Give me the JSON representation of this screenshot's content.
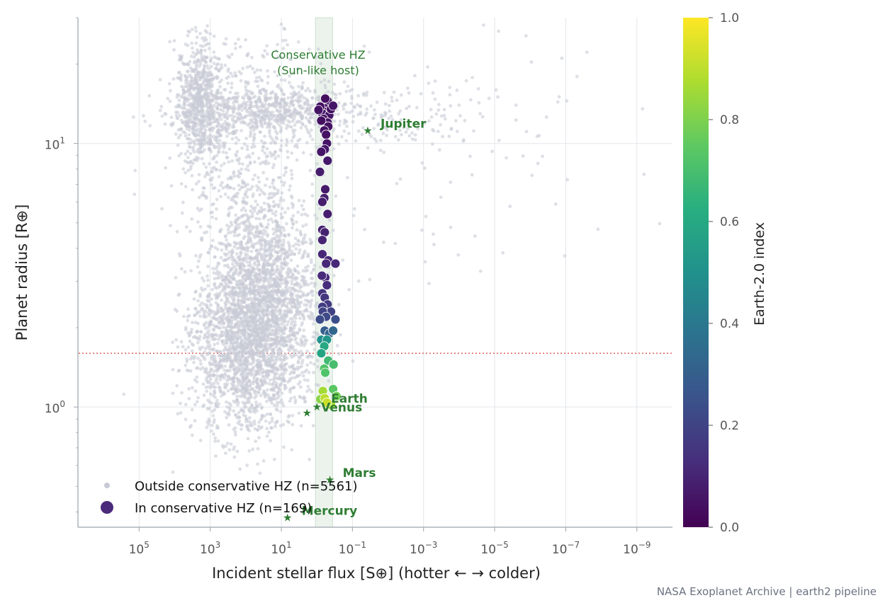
{
  "chart_data": {
    "type": "scatter",
    "xlabel": "Incident stellar flux  [S⊕]   (hotter ←   → colder)",
    "ylabel": "Planet radius  [R⊕]",
    "x_scale": "log",
    "x_reversed": true,
    "y_scale": "log",
    "xlim": [
      5000000.0,
      1e-10
    ],
    "ylim": [
      0.35,
      30
    ],
    "x_ticks": [
      {
        "value": 100000.0,
        "base": "10",
        "exp": "5"
      },
      {
        "value": 1000.0,
        "base": "10",
        "exp": "3"
      },
      {
        "value": 10.0,
        "base": "10",
        "exp": "1"
      },
      {
        "value": 0.1,
        "base": "10",
        "exp": "−1"
      },
      {
        "value": 0.001,
        "base": "10",
        "exp": "−3"
      },
      {
        "value": 1e-05,
        "base": "10",
        "exp": "−5"
      },
      {
        "value": 1e-07,
        "base": "10",
        "exp": "−7"
      },
      {
        "value": 1e-09,
        "base": "10",
        "exp": "−9"
      }
    ],
    "y_ticks": [
      {
        "value": 10,
        "base": "10",
        "exp": "1"
      },
      {
        "value": 1,
        "base": "10",
        "exp": "0"
      }
    ],
    "grid": true,
    "hz_band": {
      "flux_range": [
        1.1,
        0.36
      ],
      "label_line1": "Conservative HZ",
      "label_line2": "(Sun-like host)",
      "color": "#2e7d32"
    },
    "reference_line": {
      "radius": 1.6,
      "color": "#d9534f"
    },
    "colorbar": {
      "label": "Earth-2.0 index",
      "range": [
        0,
        1
      ],
      "ticks": [
        "0.0",
        "0.2",
        "0.4",
        "0.6",
        "0.8",
        "1.0"
      ],
      "colormap": "viridis"
    },
    "legend": {
      "placement": "lower-left",
      "entries": [
        {
          "label": "Outside conservative HZ (n=5561)",
          "color": "#c8cbd6"
        },
        {
          "label": "In conservative HZ (n=169)",
          "color": "#4b2a7b"
        }
      ]
    },
    "solar_system": [
      {
        "name": "Jupiter",
        "flux": 0.037,
        "radius": 11.2
      },
      {
        "name": "Earth",
        "flux": 1.0,
        "radius": 1.0
      },
      {
        "name": "Venus",
        "flux": 1.9,
        "radius": 0.95
      },
      {
        "name": "Mars",
        "flux": 0.43,
        "radius": 0.53
      },
      {
        "name": "Mercury",
        "flux": 6.7,
        "radius": 0.38
      }
    ],
    "background_clusters": [
      {
        "flux_center": 2000,
        "flux_spread": 0.35,
        "radius_center": 14,
        "radius_spread": 0.12,
        "count": 700
      },
      {
        "flux_center": 20,
        "flux_spread": 1.3,
        "radius_center": 13.2,
        "radius_spread": 0.05,
        "count": 650
      },
      {
        "flux_center": 0.01,
        "flux_spread": 1.6,
        "radius_center": 12.6,
        "radius_spread": 0.06,
        "count": 120
      },
      {
        "flux_center": 30,
        "flux_spread": 0.75,
        "radius_center": 2.6,
        "radius_spread": 0.16,
        "count": 1700
      },
      {
        "flux_center": 100,
        "flux_spread": 0.8,
        "radius_center": 1.5,
        "radius_spread": 0.14,
        "count": 1300
      },
      {
        "flux_center": 80,
        "flux_spread": 0.9,
        "radius_center": 6,
        "radius_spread": 0.35,
        "count": 900
      },
      {
        "flux_center": 0.0001,
        "flux_spread": 2.2,
        "radius_center": 12,
        "radius_spread": 0.3,
        "count": 90
      }
    ],
    "hz_points": [
      {
        "flux": 0.5,
        "radius": 14.5,
        "index": 0.05
      },
      {
        "flux": 0.6,
        "radius": 13.6,
        "index": 0.05
      },
      {
        "flux": 0.55,
        "radius": 13.2,
        "index": 0.05
      },
      {
        "flux": 0.7,
        "radius": 13.0,
        "index": 0.06
      },
      {
        "flux": 0.8,
        "radius": 13.8,
        "index": 0.04
      },
      {
        "flux": 0.45,
        "radius": 12.8,
        "index": 0.06
      },
      {
        "flux": 0.65,
        "radius": 12.4,
        "index": 0.05
      },
      {
        "flux": 0.5,
        "radius": 12.0,
        "index": 0.05
      },
      {
        "flux": 0.75,
        "radius": 12.2,
        "index": 0.04
      },
      {
        "flux": 0.4,
        "radius": 13.5,
        "index": 0.05
      },
      {
        "flux": 0.35,
        "radius": 13.9,
        "index": 0.06
      },
      {
        "flux": 0.9,
        "radius": 13.4,
        "index": 0.05
      },
      {
        "flux": 0.58,
        "radius": 14.8,
        "index": 0.04
      },
      {
        "flux": 0.48,
        "radius": 11.6,
        "index": 0.05
      },
      {
        "flux": 0.62,
        "radius": 11.2,
        "index": 0.05
      },
      {
        "flux": 0.55,
        "radius": 10.8,
        "index": 0.05
      },
      {
        "flux": 0.52,
        "radius": 10.0,
        "index": 0.06
      },
      {
        "flux": 0.6,
        "radius": 9.5,
        "index": 0.06
      },
      {
        "flux": 0.75,
        "radius": 9.3,
        "index": 0.06
      },
      {
        "flux": 0.5,
        "radius": 8.6,
        "index": 0.07
      },
      {
        "flux": 0.82,
        "radius": 7.8,
        "index": 0.08
      },
      {
        "flux": 0.58,
        "radius": 6.7,
        "index": 0.07
      },
      {
        "flux": 0.62,
        "radius": 6.2,
        "index": 0.08
      },
      {
        "flux": 0.7,
        "radius": 6.0,
        "index": 0.08
      },
      {
        "flux": 0.5,
        "radius": 5.4,
        "index": 0.08
      },
      {
        "flux": 0.7,
        "radius": 4.7,
        "index": 0.09
      },
      {
        "flux": 0.6,
        "radius": 4.6,
        "index": 0.09
      },
      {
        "flux": 0.7,
        "radius": 4.3,
        "index": 0.1
      },
      {
        "flux": 0.7,
        "radius": 3.8,
        "index": 0.11
      },
      {
        "flux": 0.48,
        "radius": 3.6,
        "index": 0.11
      },
      {
        "flux": 0.55,
        "radius": 3.5,
        "index": 0.11
      },
      {
        "flux": 0.3,
        "radius": 3.5,
        "index": 0.11
      },
      {
        "flux": 0.58,
        "radius": 3.1,
        "index": 0.12
      },
      {
        "flux": 0.72,
        "radius": 3.15,
        "index": 0.12
      },
      {
        "flux": 0.52,
        "radius": 2.9,
        "index": 0.13
      },
      {
        "flux": 0.7,
        "radius": 2.7,
        "index": 0.15
      },
      {
        "flux": 0.6,
        "radius": 2.6,
        "index": 0.16
      },
      {
        "flux": 0.5,
        "radius": 2.45,
        "index": 0.17
      },
      {
        "flux": 0.7,
        "radius": 2.4,
        "index": 0.18
      },
      {
        "flux": 0.4,
        "radius": 2.3,
        "index": 0.19
      },
      {
        "flux": 0.68,
        "radius": 2.3,
        "index": 0.2
      },
      {
        "flux": 0.55,
        "radius": 2.2,
        "index": 0.22
      },
      {
        "flux": 0.82,
        "radius": 2.15,
        "index": 0.23
      },
      {
        "flux": 0.3,
        "radius": 2.15,
        "index": 0.24
      },
      {
        "flux": 0.6,
        "radius": 1.95,
        "index": 0.3
      },
      {
        "flux": 0.45,
        "radius": 1.9,
        "index": 0.32
      },
      {
        "flux": 0.35,
        "radius": 1.95,
        "index": 0.33
      },
      {
        "flux": 0.75,
        "radius": 1.8,
        "index": 0.5
      },
      {
        "flux": 0.52,
        "radius": 1.8,
        "index": 0.52
      },
      {
        "flux": 0.62,
        "radius": 1.7,
        "index": 0.6
      },
      {
        "flux": 0.75,
        "radius": 1.6,
        "index": 0.58
      },
      {
        "flux": 0.48,
        "radius": 1.5,
        "index": 0.68
      },
      {
        "flux": 0.34,
        "radius": 1.45,
        "index": 0.7
      },
      {
        "flux": 0.62,
        "radius": 1.4,
        "index": 0.72
      },
      {
        "flux": 0.58,
        "radius": 1.35,
        "index": 0.72
      },
      {
        "flux": 0.68,
        "radius": 1.15,
        "index": 0.86
      },
      {
        "flux": 0.35,
        "radius": 1.17,
        "index": 0.74
      },
      {
        "flux": 0.28,
        "radius": 1.1,
        "index": 0.78
      },
      {
        "flux": 0.8,
        "radius": 1.07,
        "index": 0.82
      },
      {
        "flux": 0.6,
        "radius": 1.08,
        "index": 0.9
      },
      {
        "flux": 0.4,
        "radius": 1.02,
        "index": 0.86
      },
      {
        "flux": 0.52,
        "radius": 1.04,
        "index": 0.92
      }
    ]
  },
  "footer": {
    "source": "NASA Exoplanet Archive | earth2 pipeline"
  }
}
